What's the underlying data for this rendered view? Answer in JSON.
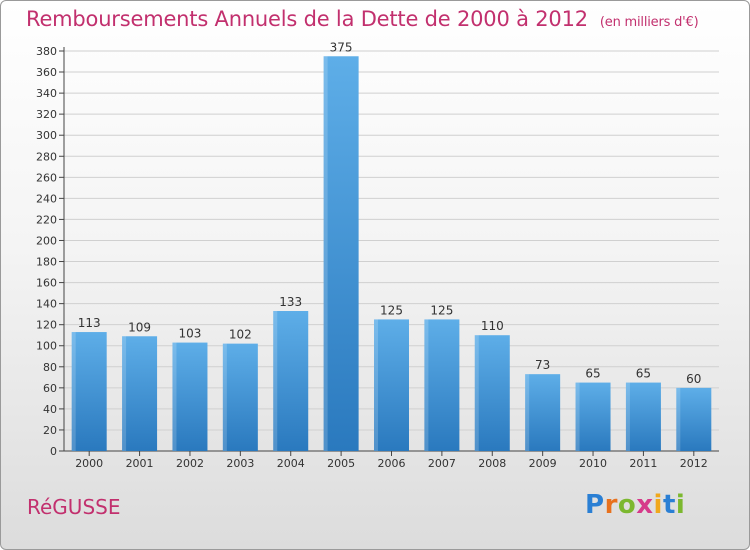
{
  "header": {
    "title": "Remboursements Annuels de la Dette de 2000 à 2012",
    "unit": "(en milliers d'€)"
  },
  "footer": {
    "commune": "RéGUSSE",
    "logo": "Proxiti"
  },
  "colors": {
    "title": "#c2306e",
    "bar_top": "#5eaee8",
    "bar_bottom": "#2a79be",
    "grid": "#d0d0d0",
    "logo_letters": [
      "#2a7fd4",
      "#e8711d",
      "#7cb82f",
      "#d63a8a",
      "#f0a81c",
      "#2a7fd4",
      "#7cb82f"
    ]
  },
  "chart_data": {
    "type": "bar",
    "title": "Remboursements Annuels de la Dette de 2000 à 2012",
    "xlabel": "",
    "ylabel": "",
    "categories": [
      "2000",
      "2001",
      "2002",
      "2003",
      "2004",
      "2005",
      "2006",
      "2007",
      "2008",
      "2009",
      "2010",
      "2011",
      "2012"
    ],
    "values": [
      113,
      109,
      103,
      102,
      133,
      375,
      125,
      125,
      110,
      73,
      65,
      65,
      60
    ],
    "ylim": [
      0,
      380
    ],
    "yticks": [
      0,
      20,
      40,
      60,
      80,
      100,
      120,
      140,
      160,
      180,
      200,
      220,
      240,
      260,
      280,
      300,
      320,
      340,
      360,
      380
    ],
    "grid": true,
    "legend": "none"
  }
}
